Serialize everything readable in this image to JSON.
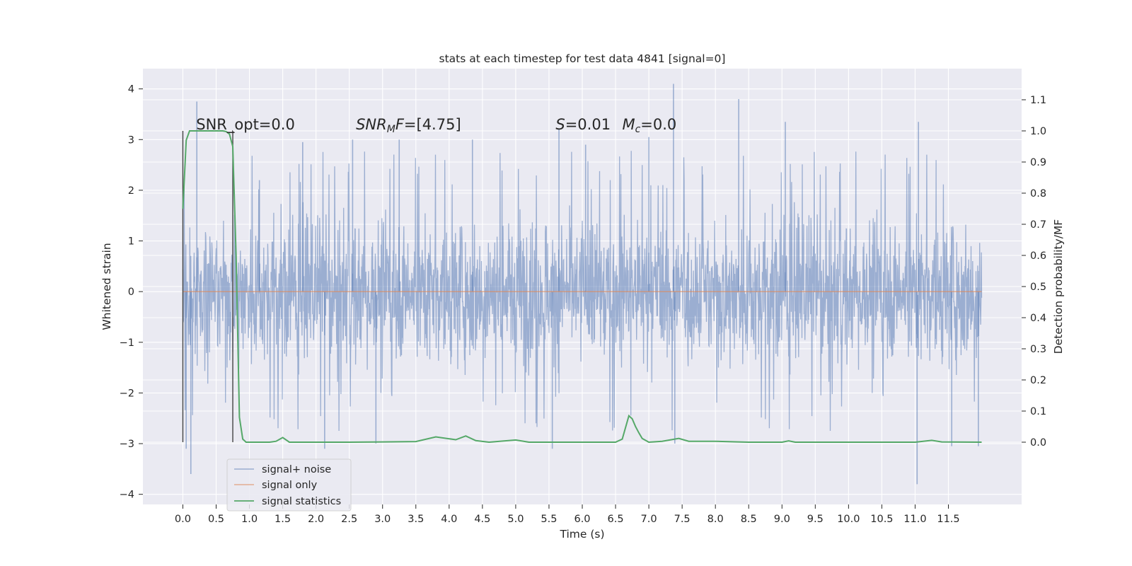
{
  "chart_data": {
    "type": "line",
    "title": "stats at each timestep for test data 4841 [signal=0]",
    "xlabel": "Time (s)",
    "ylabel": "Whitened strain",
    "y2label": "Detection probability/MF",
    "xlim": [
      -0.6,
      12.6
    ],
    "ylim": [
      -4.2,
      4.4
    ],
    "y2lim": [
      -0.2,
      1.2
    ],
    "x_ticks": [
      0.0,
      0.5,
      1.0,
      1.5,
      2.0,
      2.5,
      3.0,
      3.5,
      4.0,
      4.5,
      5.0,
      5.5,
      6.0,
      6.5,
      7.0,
      7.5,
      8.0,
      8.5,
      9.0,
      9.5,
      10.0,
      10.5,
      11.0,
      11.5
    ],
    "x_tick_labels": [
      "0.0",
      "0.5",
      "1.0",
      "1.5",
      "2.0",
      "2.5",
      "3.0",
      "3.5",
      "4.0",
      "4.5",
      "5.0",
      "5.5",
      "6.0",
      "6.5",
      "7.0",
      "7.5",
      "8.0",
      "8.5",
      "9.0",
      "9.5",
      "10.0",
      "10.5",
      "11.0",
      "11.5"
    ],
    "y_ticks": [
      4,
      3,
      2,
      1,
      0,
      -1,
      -2,
      -3,
      -4
    ],
    "y_tick_labels": [
      "4",
      "3",
      "2",
      "1",
      "0",
      "−1",
      "−2",
      "−3",
      "−4"
    ],
    "y2_ticks": [
      1.1,
      1.0,
      0.9,
      0.8,
      0.7,
      0.6,
      0.5,
      0.4,
      0.3,
      0.2,
      0.1,
      0.0
    ],
    "y2_tick_labels": [
      "1.1",
      "1.0",
      "0.9",
      "0.8",
      "0.7",
      "0.6",
      "0.5",
      "0.4",
      "0.3",
      "0.2",
      "0.1",
      "0.0"
    ],
    "grid": true,
    "legend_position": "lower-left",
    "annotations": [
      {
        "label": "SNR_opt=0.0",
        "x": 0.2
      },
      {
        "label": "SNR_MF=[4.75]",
        "x": 2.6
      },
      {
        "label": "S=0.01",
        "x": 5.6
      },
      {
        "label": "M_c=0.0",
        "x": 6.6
      }
    ],
    "vertical_markers": [
      0.0,
      0.75
    ],
    "series": [
      {
        "name": "signal+ noise",
        "color": "#4c72b0",
        "axis": "left",
        "style": "noise",
        "duration": 12.0,
        "envelope_typical": 1.5,
        "spikes": [
          {
            "x": 0.05,
            "y": -3.1
          },
          {
            "x": 0.12,
            "y": -3.6
          },
          {
            "x": 0.21,
            "y": 3.75
          },
          {
            "x": 1.15,
            "y": 2.2
          },
          {
            "x": 1.8,
            "y": 2.95
          },
          {
            "x": 2.13,
            "y": -3.1
          },
          {
            "x": 2.55,
            "y": 3.0
          },
          {
            "x": 2.9,
            "y": -3.0
          },
          {
            "x": 3.25,
            "y": 3.0
          },
          {
            "x": 4.35,
            "y": 3.0
          },
          {
            "x": 5.55,
            "y": -3.1
          },
          {
            "x": 5.65,
            "y": 3.2
          },
          {
            "x": 6.05,
            "y": 2.9
          },
          {
            "x": 7.0,
            "y": 3.05
          },
          {
            "x": 7.37,
            "y": 4.1
          },
          {
            "x": 7.39,
            "y": -3.0
          },
          {
            "x": 8.35,
            "y": 3.8
          },
          {
            "x": 9.05,
            "y": 3.35
          },
          {
            "x": 11.03,
            "y": -3.8
          },
          {
            "x": 11.05,
            "y": 3.35
          },
          {
            "x": 11.55,
            "y": -3.05
          },
          {
            "x": 11.95,
            "y": -3.05
          }
        ]
      },
      {
        "name": "signal only",
        "color": "#dd8452",
        "axis": "left",
        "x": [
          0.0,
          12.0
        ],
        "y": [
          0.0,
          0.0
        ]
      },
      {
        "name": "signal statistics",
        "color": "#55a868",
        "axis": "right",
        "x": [
          0.0,
          0.05,
          0.1,
          0.15,
          0.2,
          0.3,
          0.5,
          0.6,
          0.65,
          0.7,
          0.75,
          0.8,
          0.85,
          0.9,
          0.95,
          1.1,
          1.3,
          1.4,
          1.5,
          1.6,
          1.8,
          2.5,
          3.0,
          3.5,
          3.8,
          4.1,
          4.25,
          4.4,
          4.6,
          5.0,
          5.2,
          5.5,
          6.0,
          6.5,
          6.6,
          6.7,
          6.75,
          6.8,
          6.85,
          6.9,
          7.0,
          7.2,
          7.45,
          7.6,
          8.0,
          8.5,
          9.0,
          9.1,
          9.2,
          10.0,
          11.0,
          11.25,
          11.4,
          12.0
        ],
        "y": [
          0.75,
          0.97,
          1.0,
          1.0,
          1.0,
          1.0,
          1.0,
          1.0,
          0.998,
          0.99,
          0.95,
          0.6,
          0.08,
          0.01,
          0.0,
          0.0,
          0.0,
          0.003,
          0.015,
          0.0,
          0.0,
          0.0,
          0.001,
          0.002,
          0.017,
          0.008,
          0.02,
          0.005,
          0.0,
          0.007,
          0.0,
          0.0,
          0.0,
          0.0,
          0.01,
          0.085,
          0.075,
          0.05,
          0.03,
          0.012,
          0.0,
          0.003,
          0.012,
          0.003,
          0.003,
          0.0,
          0.0,
          0.004,
          0.0,
          0.0,
          0.0,
          0.006,
          0.001,
          0.0
        ]
      }
    ]
  }
}
